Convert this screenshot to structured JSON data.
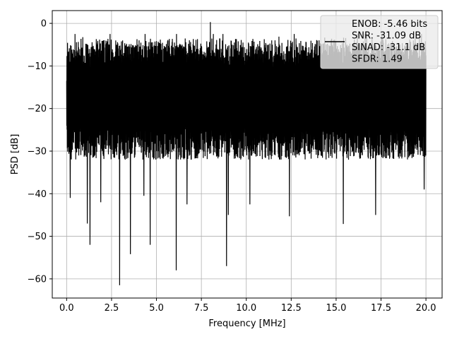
{
  "chart_data": {
    "type": "line",
    "title": "",
    "xlabel": "Frequency [MHz]",
    "ylabel": "PSD [dB]",
    "xlim": [
      -0.8,
      20.9
    ],
    "ylim": [
      -64.5,
      3.0
    ],
    "xticks": [
      0.0,
      2.5,
      5.0,
      7.5,
      10.0,
      12.5,
      15.0,
      17.5,
      20.0
    ],
    "xtick_labels": [
      "0.0",
      "2.5",
      "5.0",
      "7.5",
      "10.0",
      "12.5",
      "15.0",
      "17.5",
      "20.0"
    ],
    "yticks": [
      0,
      -10,
      -20,
      -30,
      -40,
      -50,
      -60
    ],
    "ytick_labels": [
      "0",
      "−10",
      "−20",
      "−30",
      "−40",
      "−50",
      "−60"
    ],
    "grid": true,
    "legend_position": "top-right",
    "series": [
      {
        "color": "#000000",
        "x_range": [
          0.0,
          20.0
        ],
        "band_top": [
          -5,
          -3
        ],
        "band_bottom": [
          -32,
          -24
        ],
        "peak_max": 0.3,
        "notable_dips": [
          {
            "x": 0.2,
            "y": -41
          },
          {
            "x": 1.15,
            "y": -47
          },
          {
            "x": 1.3,
            "y": -52
          },
          {
            "x": 1.9,
            "y": -42
          },
          {
            "x": 2.95,
            "y": -61.5
          },
          {
            "x": 3.55,
            "y": -54.2
          },
          {
            "x": 4.65,
            "y": -52
          },
          {
            "x": 4.3,
            "y": -40.5
          },
          {
            "x": 6.1,
            "y": -58
          },
          {
            "x": 6.7,
            "y": -42.5
          },
          {
            "x": 8.9,
            "y": -57
          },
          {
            "x": 9.0,
            "y": -45
          },
          {
            "x": 10.2,
            "y": -42.5
          },
          {
            "x": 12.4,
            "y": -45.3
          },
          {
            "x": 15.4,
            "y": -47.1
          },
          {
            "x": 17.2,
            "y": -45
          },
          {
            "x": 19.9,
            "y": -39
          }
        ]
      }
    ],
    "legend": {
      "color": "#000000",
      "lines": [
        "ENOB: -5.46 bits",
        "SNR: -31.09 dB",
        "SINAD: -31.1 dB",
        "SFDR: 1.49"
      ]
    }
  }
}
